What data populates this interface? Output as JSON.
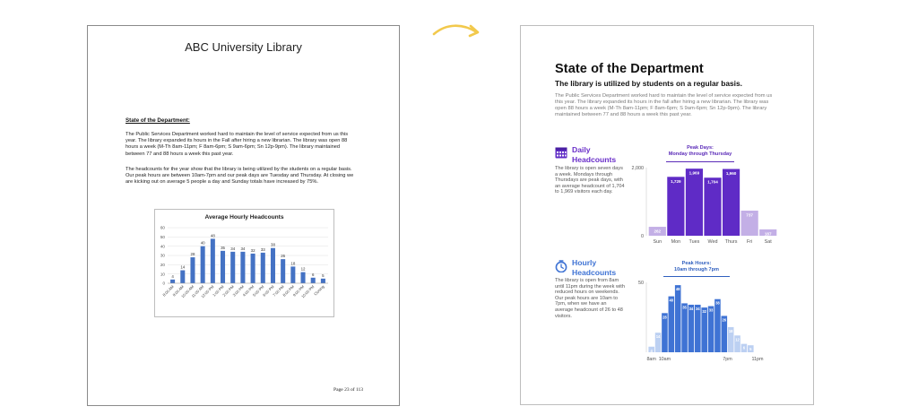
{
  "left_page": {
    "title": "ABC University Library",
    "heading": "State of the Department:",
    "paragraph1": "The Public Services Department worked hard to maintain the level of service expected from us this year.  The library expanded its hours in the Fall after hiring a new librarian. The library was open 88 hours a week (M-Th 8am-11pm; F 8am-6pm; S 9am-6pm; Sn 12p-9pm).  The library maintained between 77 and 88 hours a week this past year.",
    "paragraph2": "The headcounts for the year show that the library is being utilized by the students on a regular basis. Our peak hours are between 10am-7pm and our peak days are Tuesday and Thursday.  At closing we are kicking out on average 5 people a day and Sunday totals have increased by 75%.",
    "page_number": "Page 23 of 113"
  },
  "right_page": {
    "title": "State of the Department",
    "subtitle": "The library is utilized by students on a regular basis.",
    "intro": "The Public Services Department worked hard to maintain the level of service expected from us this year. The library expanded its hours in the fall after hiring a new librarian. The library was open 88 hours a week (M-Th 8am-11pm; F 8am-6pm; S 9am-6pm; Sn 12p-9pm). The library maintained between 77 and 88 hours a week this past year.",
    "daily": {
      "title_line1": "Daily",
      "title_line2": "Headcounts",
      "body": "The library is open seven days a week. Mondays through Thursdays are peak days, with an average headcount of 1,704 to 1,969 visitors each day.",
      "peak_line1": "Peak Days:",
      "peak_line2": "Monday through Thursday",
      "icon": "calendar-icon",
      "color": "#5f2bc6"
    },
    "hourly": {
      "title_line1": "Hourly",
      "title_line2": "Headcounts",
      "body": "The library is open from 8am until 11pm during the week with reduced hours on weekends. Our peak hours are 10am to 7pm, when we have an average headcount of 26 to 48 visitors.",
      "peak_line1": "Peak Hours:",
      "peak_line2": "10am through 7pm",
      "icon": "clock-icon",
      "color": "#3f73d4"
    }
  },
  "chart_data": [
    {
      "type": "bar",
      "title": "Average Hourly Headcounts",
      "categories": [
        "8:00 AM",
        "9:00 AM",
        "10:00 AM",
        "11:00 AM",
        "12:00 PM",
        "1:00 PM",
        "2:00 PM",
        "3:00 PM",
        "4:00 PM",
        "5:00 PM",
        "6:00 PM",
        "7:00 PM",
        "8:00 PM",
        "9:00 PM",
        "10:00 PM",
        "Closing"
      ],
      "values": [
        4,
        14,
        28,
        40,
        48,
        35,
        34,
        34,
        32,
        33,
        38,
        26,
        18,
        12,
        6,
        5
      ],
      "yticks": [
        0,
        10,
        20,
        30,
        40,
        50,
        60
      ],
      "ylim": [
        0,
        60
      ],
      "color": "#4472c4"
    },
    {
      "type": "bar",
      "title": "",
      "categories": [
        "Sun",
        "Mon",
        "Tues",
        "Wed",
        "Thurs",
        "Fri",
        "Sat"
      ],
      "values": [
        262,
        1729,
        1969,
        1704,
        1960,
        737,
        187
      ],
      "value_labels": [
        "262",
        "1,729",
        "1,969",
        "1,704",
        "1,960",
        "737",
        "187"
      ],
      "highlight": [
        false,
        true,
        true,
        true,
        true,
        false,
        false
      ],
      "yticks_labels": [
        "2,000",
        "0"
      ],
      "yticks": [
        2000,
        0
      ],
      "ylim": [
        0,
        2000
      ],
      "colors": {
        "peak": "#5f2bc6",
        "off": "#c3afe6"
      }
    },
    {
      "type": "bar",
      "title": "",
      "values": [
        4,
        14,
        28,
        40,
        48,
        35,
        34,
        34,
        32,
        33,
        38,
        26,
        18,
        12,
        6,
        5
      ],
      "value_labels": [
        "4",
        "14",
        "28",
        "40",
        "48",
        "35",
        "34",
        "34",
        "32",
        "33",
        "38",
        "26",
        "18",
        "12",
        "6",
        "5"
      ],
      "highlight": [
        false,
        false,
        true,
        true,
        true,
        true,
        true,
        true,
        true,
        true,
        true,
        true,
        false,
        false,
        false,
        false
      ],
      "x_tick_labels": [
        "8am",
        "10am",
        "7pm",
        "11pm"
      ],
      "yticks_labels": [
        "50"
      ],
      "yticks": [
        50
      ],
      "ylim": [
        0,
        50
      ],
      "colors": {
        "peak": "#3f73d4",
        "off": "#bcd0f2"
      }
    }
  ],
  "arrow_color": "#f2c94c"
}
